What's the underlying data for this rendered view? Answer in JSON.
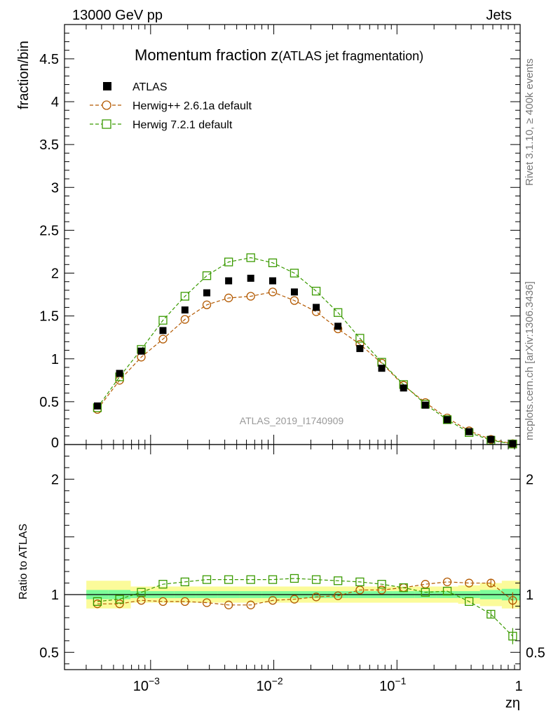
{
  "header": {
    "energy": "13000 GeV pp",
    "category": "Jets"
  },
  "side": {
    "rivet": "Rivet 3.1.10, ≥ 400k events",
    "source": "mcplots.cern.ch [arXiv:1306.3436]"
  },
  "colors": {
    "data": "#000000",
    "herwigpp": "#b35900",
    "herwig7": "#3a9a00",
    "band_inner": "#7dfc9a",
    "band_outer": "#fbfb9a"
  },
  "chart_data": [
    {
      "type": "scatter",
      "title": "Momentum fraction z",
      "title_suffix": "(ATLAS jet fragmentation)",
      "ylabel": "fraction/bin",
      "xscale": "log",
      "xlim": [
        0.0002,
        1.0
      ],
      "ylim": [
        0,
        4.9
      ],
      "yticks": [
        0.5,
        1,
        1.5,
        2,
        2.5,
        3,
        3.5,
        4,
        4.5
      ],
      "ytick_labels": [
        "0.5",
        "1",
        "1.5",
        "2",
        "2.5",
        "3",
        "3.5",
        "4",
        "4.5"
      ],
      "y0_label": "0",
      "analysis_label": "ATLAS_2019_I1740909",
      "legend": [
        "ATLAS",
        "Herwig++ 2.6.1a default",
        "Herwig 7.2.1 default"
      ],
      "x": [
        0.00037,
        0.00056,
        0.00084,
        0.00126,
        0.0019,
        0.00286,
        0.0043,
        0.0065,
        0.0098,
        0.0147,
        0.0221,
        0.0332,
        0.05,
        0.0752,
        0.1131,
        0.17,
        0.256,
        0.385,
        0.579,
        0.87
      ],
      "series": [
        {
          "name": "ATLAS",
          "marker": "filled-square",
          "values": [
            0.45,
            0.83,
            1.09,
            1.33,
            1.57,
            1.77,
            1.91,
            1.94,
            1.91,
            1.78,
            1.6,
            1.38,
            1.12,
            0.89,
            0.66,
            0.46,
            0.29,
            0.15,
            0.06,
            0.01
          ]
        },
        {
          "name": "Herwig++ 2.6.1a default",
          "marker": "open-circle",
          "values": [
            0.41,
            0.75,
            1.02,
            1.23,
            1.46,
            1.63,
            1.71,
            1.73,
            1.78,
            1.68,
            1.55,
            1.35,
            1.17,
            0.95,
            0.69,
            0.49,
            0.31,
            0.16,
            0.06,
            0.01
          ]
        },
        {
          "name": "Herwig 7.2.1 default",
          "marker": "open-square",
          "values": [
            0.43,
            0.79,
            1.11,
            1.45,
            1.73,
            1.97,
            2.13,
            2.18,
            2.12,
            2.0,
            1.79,
            1.54,
            1.24,
            0.96,
            0.7,
            0.47,
            0.29,
            0.14,
            0.05,
            0.006
          ]
        }
      ]
    },
    {
      "type": "scatter",
      "ylabel": "Ratio to ATLAS",
      "xlabel": "zη",
      "xscale": "log",
      "xlim": [
        0.0002,
        1.0
      ],
      "ylim": [
        0.35,
        2.3
      ],
      "yticks": [
        0.5,
        1,
        2
      ],
      "ytick_labels": [
        "0.5",
        "1",
        "2"
      ],
      "xtick_labels": [
        "10",
        "10",
        "10",
        "1"
      ],
      "xtick_exponents": [
        "−3",
        "−2",
        "−1",
        ""
      ],
      "xtick_values": [
        0.001,
        0.01,
        0.1,
        1
      ],
      "x": [
        0.00037,
        0.00056,
        0.00084,
        0.00126,
        0.0019,
        0.00286,
        0.0043,
        0.0065,
        0.0098,
        0.0147,
        0.0221,
        0.0332,
        0.05,
        0.0752,
        0.1131,
        0.17,
        0.256,
        0.385,
        0.579,
        0.87
      ],
      "band_outer_halfwidth": [
        0.12,
        0.12,
        0.07,
        0.07,
        0.07,
        0.07,
        0.07,
        0.07,
        0.07,
        0.07,
        0.07,
        0.07,
        0.07,
        0.07,
        0.07,
        0.07,
        0.07,
        0.08,
        0.1,
        0.12
      ],
      "band_inner_halfwidth": [
        0.04,
        0.04,
        0.03,
        0.03,
        0.03,
        0.03,
        0.03,
        0.03,
        0.03,
        0.03,
        0.03,
        0.03,
        0.03,
        0.03,
        0.03,
        0.03,
        0.03,
        0.03,
        0.04,
        0.05
      ],
      "series": [
        {
          "name": "Herwig++ 2.6.1a default",
          "marker": "open-circle",
          "values": [
            0.92,
            0.92,
            0.95,
            0.94,
            0.94,
            0.93,
            0.91,
            0.91,
            0.95,
            0.96,
            0.98,
            0.99,
            1.04,
            1.04,
            1.06,
            1.09,
            1.11,
            1.1,
            1.1,
            0.95
          ]
        },
        {
          "name": "Herwig 7.2.1 default",
          "marker": "open-square",
          "values": [
            0.94,
            0.96,
            1.02,
            1.09,
            1.11,
            1.13,
            1.13,
            1.13,
            1.13,
            1.14,
            1.13,
            1.12,
            1.11,
            1.09,
            1.06,
            1.02,
            1.03,
            0.94,
            0.83,
            0.64
          ]
        }
      ]
    }
  ]
}
